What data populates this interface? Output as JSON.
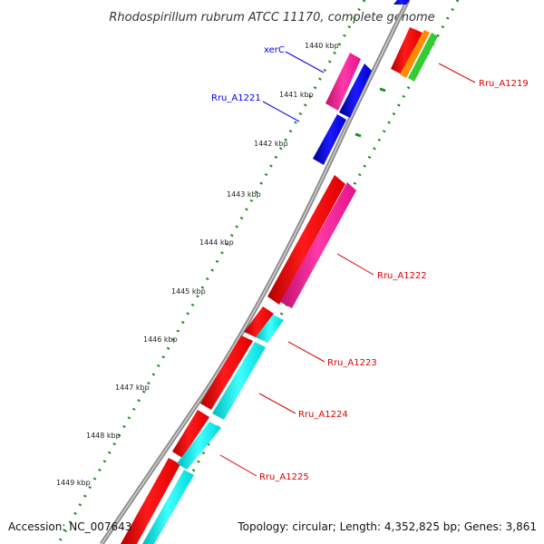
{
  "map": {
    "title": "Rhodospirillum rubrum ATCC 11170, complete genome",
    "accession_text": "Accession: NC_007643",
    "summary_text": "Topology: circular; Length: 4,352,825 bp; Genes: 3,861",
    "kbp_ticks": [
      "1440 kbp",
      "1441 kbp",
      "1442 kbp",
      "1443 kbp",
      "1444 kbp",
      "1445 kbp",
      "1446 kbp",
      "1447 kbp",
      "1448 kbp",
      "1449 kbp"
    ],
    "gene_labels": [
      {
        "name": "xerC",
        "color": "#0000ee"
      },
      {
        "name": "Rru_A1221",
        "color": "#0000ee"
      },
      {
        "name": "Rru_A1219",
        "color": "#dd0000"
      },
      {
        "name": "Rru_A1222",
        "color": "#dd0000"
      },
      {
        "name": "Rru_A1223",
        "color": "#dd0000"
      },
      {
        "name": "Rru_A1224",
        "color": "#dd0000"
      },
      {
        "name": "Rru_A1225",
        "color": "#dd0000"
      }
    ]
  },
  "colors": {
    "backbone": "#8a8a8a",
    "tick_dots": "#1f8a1f",
    "cds_red": "#ff0000",
    "cds_magenta": "#ff1493",
    "cds_blue": "#0000dd",
    "cds_cyan": "#00e5e5",
    "cds_orange": "#ff8c00",
    "cds_green": "#33cc33"
  }
}
